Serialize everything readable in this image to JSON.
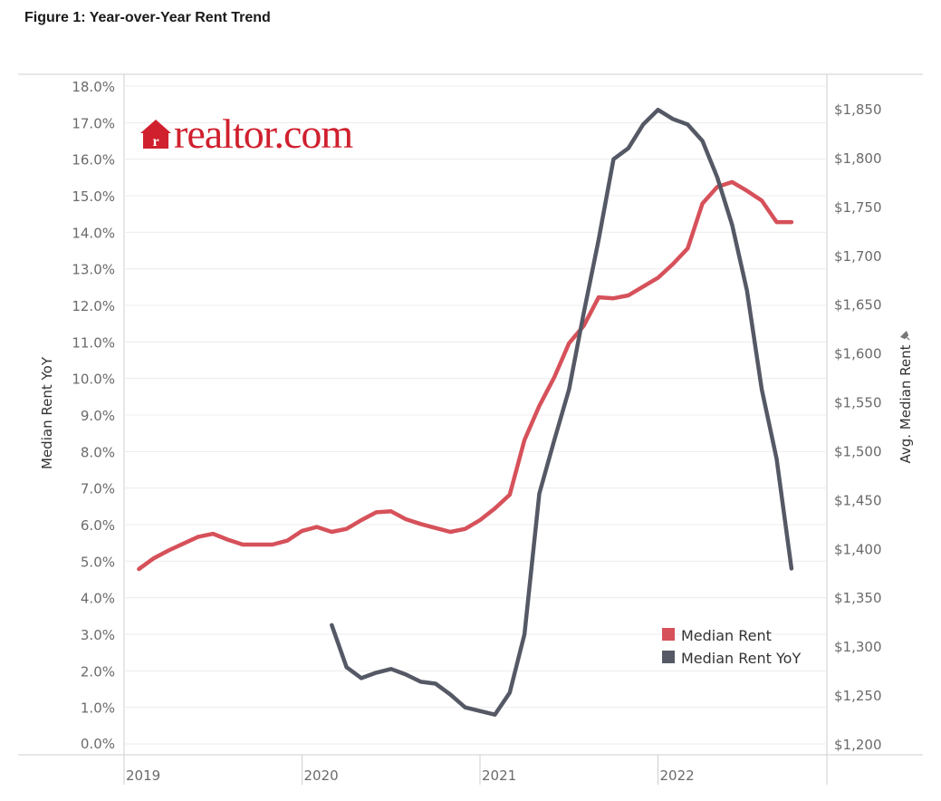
{
  "header": {
    "title": "Figure 1: Year-over-Year Rent Trend"
  },
  "logo": {
    "text": "realtor.com",
    "icon": "house-r-icon",
    "color": "#d0202e"
  },
  "chart_data": {
    "type": "line",
    "x_ticks": [
      "2019",
      "2020",
      "2021",
      "2022"
    ],
    "y_left": {
      "label": "Median Rent YoY",
      "ticks": [
        "18.0%",
        "17.0%",
        "16.0%",
        "15.0%",
        "14.0%",
        "13.0%",
        "12.0%",
        "11.0%",
        "10.0%",
        "9.0%",
        "8.0%",
        "7.0%",
        "6.0%",
        "5.0%",
        "4.0%",
        "3.0%",
        "2.0%",
        "1.0%",
        "0.0%"
      ],
      "range": [
        0,
        18
      ]
    },
    "y_right": {
      "label": "Avg. Median Rent",
      "ticks": [
        "$1,850",
        "$1,800",
        "$1,750",
        "$1,700",
        "$1,650",
        "$1,600",
        "$1,550",
        "$1,500",
        "$1,450",
        "$1,400",
        "$1,350",
        "$1,300",
        "$1,250",
        "$1,200"
      ],
      "range": [
        1200,
        1865
      ]
    },
    "legend": {
      "position": "bottom-right"
    },
    "series": [
      {
        "name": "Median Rent",
        "axis": "right",
        "color": "#d6515a",
        "x": [
          "2019-02",
          "2019-03",
          "2019-04",
          "2019-05",
          "2019-06",
          "2019-07",
          "2019-08",
          "2019-09",
          "2019-10",
          "2019-11",
          "2019-12",
          "2020-01",
          "2020-02",
          "2020-03",
          "2020-04",
          "2020-05",
          "2020-06",
          "2020-07",
          "2020-08",
          "2020-09",
          "2020-10",
          "2020-11",
          "2020-12",
          "2021-01",
          "2021-02",
          "2021-03",
          "2021-04",
          "2021-05",
          "2021-06",
          "2021-07",
          "2021-08",
          "2021-09",
          "2021-10",
          "2021-11",
          "2021-12",
          "2022-01",
          "2022-02",
          "2022-03",
          "2022-04",
          "2022-05",
          "2022-06",
          "2022-07",
          "2022-08",
          "2022-09",
          "2022-10"
        ],
        "values": [
          1379,
          1390,
          1398,
          1405,
          1412,
          1415,
          1409,
          1404,
          1404,
          1404,
          1408,
          1418,
          1422,
          1417,
          1420,
          1429,
          1437,
          1438,
          1430,
          1425,
          1421,
          1417,
          1420,
          1429,
          1441,
          1455,
          1511,
          1546,
          1575,
          1610,
          1628,
          1657,
          1656,
          1659,
          1668,
          1677,
          1691,
          1707,
          1753,
          1770,
          1775,
          1766,
          1756,
          1734,
          1734
        ],
        "note_last": "ends slightly above $1,730"
      },
      {
        "name": "Median Rent YoY",
        "axis": "left",
        "color": "#555965",
        "x": [
          "2020-03",
          "2020-04",
          "2020-05",
          "2020-06",
          "2020-07",
          "2020-08",
          "2020-09",
          "2020-10",
          "2020-11",
          "2020-12",
          "2021-01",
          "2021-02",
          "2021-03",
          "2021-04",
          "2021-05",
          "2021-06",
          "2021-07",
          "2021-08",
          "2021-09",
          "2021-10",
          "2021-11",
          "2021-12",
          "2022-01",
          "2022-02",
          "2022-03",
          "2022-04",
          "2022-05",
          "2022-06",
          "2022-07",
          "2022-08",
          "2022-09",
          "2022-10"
        ],
        "values": [
          3.25,
          2.1,
          1.8,
          1.95,
          2.05,
          1.9,
          1.7,
          1.65,
          1.35,
          1.0,
          0.9,
          0.8,
          1.4,
          3.0,
          6.85,
          8.3,
          9.7,
          11.8,
          13.8,
          16.0,
          16.3,
          16.95,
          17.35,
          17.1,
          16.95,
          16.5,
          15.5,
          14.2,
          12.4,
          9.7,
          7.8,
          4.8
        ]
      }
    ]
  }
}
